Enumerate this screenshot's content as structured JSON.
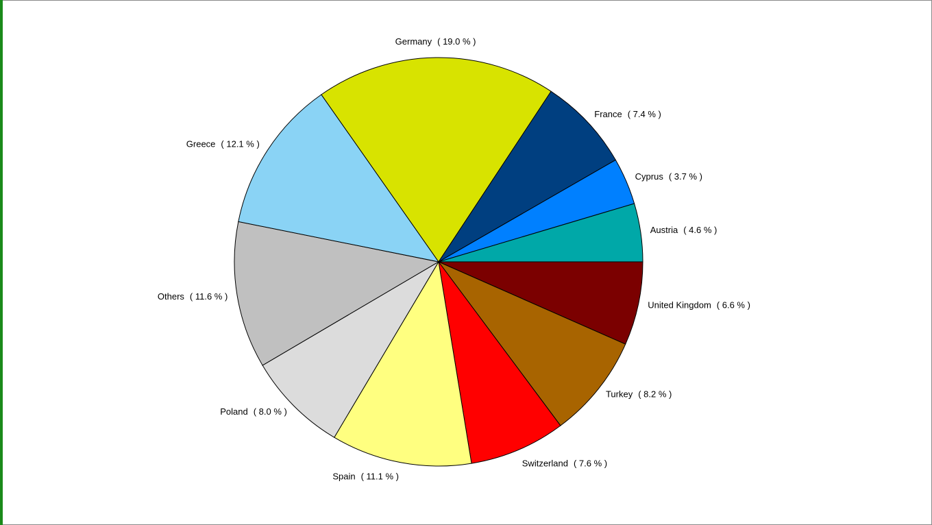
{
  "chart_data": {
    "type": "pie",
    "categories": [
      "United Kingdom",
      "Turkey",
      "Switzerland",
      "Spain",
      "Poland",
      "Others",
      "Greece",
      "Germany",
      "France",
      "Cyprus",
      "Austria"
    ],
    "values": [
      6.6,
      8.2,
      7.6,
      11.1,
      8.0,
      11.6,
      12.1,
      19.0,
      7.4,
      3.7,
      4.6
    ],
    "value_labels": [
      "( 6.6 % )",
      "( 8.2 % )",
      "( 7.6 % )",
      "( 11.1 % )",
      "( 8.0 % )",
      "( 11.6 % )",
      "( 12.1 % )",
      "( 19.0 % )",
      "( 7.4 % )",
      "( 3.7 % )",
      "( 4.6 % )"
    ],
    "colors": [
      "#7b0000",
      "#a86400",
      "#ff0000",
      "#ffff80",
      "#dcdcdc",
      "#c0c0c0",
      "#8ad3f5",
      "#d8e300",
      "#003f80",
      "#0080ff",
      "#00a8a8"
    ]
  }
}
